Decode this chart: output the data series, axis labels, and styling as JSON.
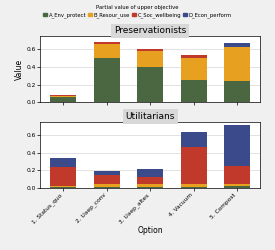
{
  "categories": [
    "1. Status_quo",
    "2. Uaep_conv",
    "3. Uaep_altes",
    "4. Vacuum",
    "5. Compost"
  ],
  "colors": {
    "A_Env_protect": "#4a6741",
    "B_Resour_use": "#e8a020",
    "C_Soc_wellbeing": "#c0392b",
    "D_Econ_perform": "#3b4a8a"
  },
  "legend_labels": [
    "A_Env_protect",
    "B_Resour_use",
    "C_Soc_wellbeing",
    "D_Econ_perform"
  ],
  "preservationists": {
    "A_Env_protect": [
      0.06,
      0.5,
      0.4,
      0.25,
      0.24
    ],
    "B_Resour_use": [
      0.005,
      0.16,
      0.18,
      0.25,
      0.38
    ],
    "C_Soc_wellbeing": [
      0.02,
      0.02,
      0.02,
      0.03,
      0.01
    ],
    "D_Econ_perform": [
      0.001,
      0.001,
      0.001,
      0.001,
      0.04
    ]
  },
  "utilitarians": {
    "A_Env_protect": [
      0.01,
      0.01,
      0.01,
      0.01,
      0.02
    ],
    "B_Resour_use": [
      0.01,
      0.03,
      0.03,
      0.03,
      0.03
    ],
    "C_Soc_wellbeing": [
      0.22,
      0.11,
      0.08,
      0.43,
      0.2
    ],
    "D_Econ_perform": [
      0.1,
      0.04,
      0.1,
      0.16,
      0.46
    ]
  },
  "ylabel": "Value",
  "xlabel": "Option",
  "title_top": "Preservationists",
  "title_bottom": "Utilitarians",
  "legend_title": "Partial value of upper objective",
  "ylim": [
    0.0,
    0.75
  ],
  "yticks": [
    0.0,
    0.2,
    0.4,
    0.6
  ],
  "background_color": "#f0f0f0",
  "plot_bg": "#ffffff",
  "title_bg": "#d8d8d8"
}
